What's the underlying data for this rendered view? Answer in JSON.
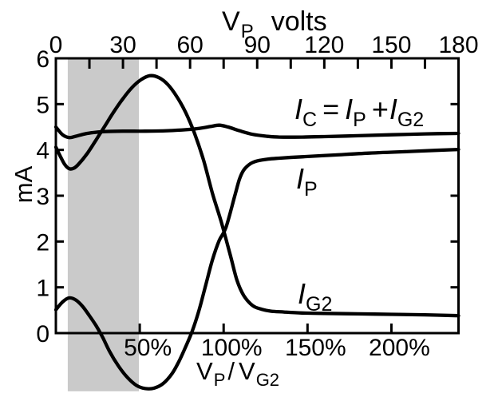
{
  "figure": {
    "background_color": "#ffffff",
    "line_color": "#000000",
    "shaded_region_color": "#cacaca"
  },
  "labels": {
    "top_axis_title": {
      "v": "V",
      "v_sub": "P",
      "unit": "volts"
    },
    "bottom_axis_title": {
      "v1": "V",
      "v1_sub": "P",
      "divider": "/",
      "v2": "V",
      "v2_sub": "G2"
    },
    "y_axis_title": "mA",
    "curve_ic": {
      "i1": "I",
      "i1_sub": "C",
      "eq": "=",
      "i2": "I",
      "i2_sub": "P",
      "plus": "+",
      "i3": "I",
      "i3_sub": "G2"
    },
    "curve_ip": {
      "i": "I",
      "sub": "P"
    },
    "curve_ig2": {
      "i": "I",
      "sub": "G2"
    }
  },
  "chart_data": {
    "type": "line",
    "grid": false,
    "legend": "inline-labels",
    "x_axis_top": {
      "label": "V_P volts",
      "range_volts": [
        0,
        180
      ],
      "minor_tick_interval_volts": 15,
      "tick_label_interval_volts": 30,
      "tick_labels": [
        "0",
        "30",
        "60",
        "90",
        "120",
        "150",
        "180"
      ]
    },
    "x_axis_bottom": {
      "label": "V_P / V_G2",
      "range_percent": [
        0,
        240
      ],
      "tick_values_percent": [
        50,
        100,
        150,
        200
      ],
      "tick_labels": [
        "50%",
        "100%",
        "150%",
        "200%"
      ]
    },
    "y_axis": {
      "label": "mA",
      "range_mA": [
        0,
        6
      ],
      "tick_values": [
        1,
        2,
        3,
        4,
        5
      ],
      "tick_labels": [
        "0",
        "1",
        "2",
        "3",
        "4",
        "5",
        "6"
      ],
      "curves_extend_below_zero_to_mA": -1.27
    },
    "shaded_band": {
      "x_range_percent": [
        7.1,
        49.5
      ],
      "y_top_mA": 6,
      "y_bottom_mA": -1.27,
      "color": "#cacaca"
    },
    "series": [
      {
        "id": "ic",
        "name": "I_C = I_P + I_G2",
        "x_volts": [
          0,
          3,
          6,
          9,
          13,
          17,
          22,
          30,
          40,
          50,
          58,
          64,
          69,
          73,
          77,
          82,
          88,
          94,
          100,
          110,
          120,
          135,
          150,
          165,
          180
        ],
        "y_mA": [
          4.5,
          4.33,
          4.27,
          4.3,
          4.35,
          4.38,
          4.4,
          4.41,
          4.41,
          4.42,
          4.44,
          4.47,
          4.51,
          4.54,
          4.5,
          4.42,
          4.34,
          4.3,
          4.28,
          4.28,
          4.29,
          4.31,
          4.33,
          4.35,
          4.36
        ]
      },
      {
        "id": "ip",
        "name": "I_P",
        "x_volts": [
          0,
          3,
          6,
          9,
          12,
          15,
          18,
          21,
          24,
          28,
          32,
          36,
          40,
          44,
          48,
          52,
          55,
          58,
          61,
          64,
          67,
          70,
          73,
          76,
          80,
          82,
          84,
          87,
          90,
          95,
          100,
          110,
          125,
          140,
          155,
          170,
          180
        ],
        "y_mA": [
          0.51,
          0.68,
          0.77,
          0.72,
          0.58,
          0.38,
          0.16,
          -0.1,
          -0.4,
          -0.72,
          -0.97,
          -1.14,
          -1.21,
          -1.2,
          -1.1,
          -0.88,
          -0.62,
          -0.3,
          0.05,
          0.5,
          1.05,
          1.6,
          2.02,
          2.3,
          3.0,
          3.35,
          3.56,
          3.7,
          3.76,
          3.8,
          3.82,
          3.85,
          3.89,
          3.93,
          3.96,
          3.99,
          4.01
        ]
      },
      {
        "id": "ig2",
        "name": "I_G2",
        "x_volts": [
          0,
          2,
          4,
          6,
          8,
          10,
          14,
          18,
          22,
          26,
          30,
          34,
          38,
          42,
          46,
          50,
          54,
          58,
          62,
          66,
          70,
          74,
          78,
          81,
          84,
          88,
          92,
          96,
          102,
          110,
          120,
          135,
          150,
          165,
          180
        ],
        "y_mA": [
          4.06,
          3.86,
          3.68,
          3.59,
          3.6,
          3.68,
          3.92,
          4.22,
          4.53,
          4.84,
          5.12,
          5.36,
          5.53,
          5.62,
          5.58,
          5.43,
          5.17,
          4.82,
          4.36,
          3.78,
          3.05,
          2.42,
          1.7,
          1.15,
          0.82,
          0.6,
          0.52,
          0.48,
          0.46,
          0.44,
          0.43,
          0.42,
          0.41,
          0.4,
          0.38
        ]
      }
    ]
  }
}
